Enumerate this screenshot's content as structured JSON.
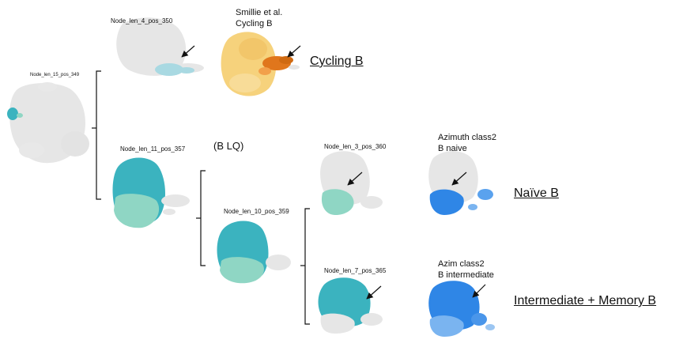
{
  "root": {
    "label": "Node_len_15_pos_349"
  },
  "nodes": {
    "n4": {
      "label": "Node_len_4_pos_350"
    },
    "n11": {
      "label": "Node_len_11_pos_357",
      "note": "(B LQ)"
    },
    "n10": {
      "label": "Node_len_10_pos_359"
    },
    "n3": {
      "label": "Node_len_3_pos_360"
    },
    "n7": {
      "label": "Node_len_7_pos_365"
    }
  },
  "references": {
    "cycling": {
      "line1": "Smillie et al.",
      "line2": "Cycling B"
    },
    "naive": {
      "line1": "Azimuth class2",
      "line2": "B naive"
    },
    "intermediate": {
      "line1": "Azim class2",
      "line2": "B intermediate"
    }
  },
  "annotations": {
    "cycling": "Cycling B",
    "naive": "Naïve B",
    "intermediate_memory": "Intermediate + Memory B"
  },
  "colors": {
    "background_cells": "#e6e6e6",
    "teal": "#3bb3bf",
    "teal_light": "#8fd6c4",
    "light_blue": "#a9d9e2",
    "yellow": "#f6d27c",
    "orange": "#e0761c",
    "blue": "#2f86e6"
  }
}
